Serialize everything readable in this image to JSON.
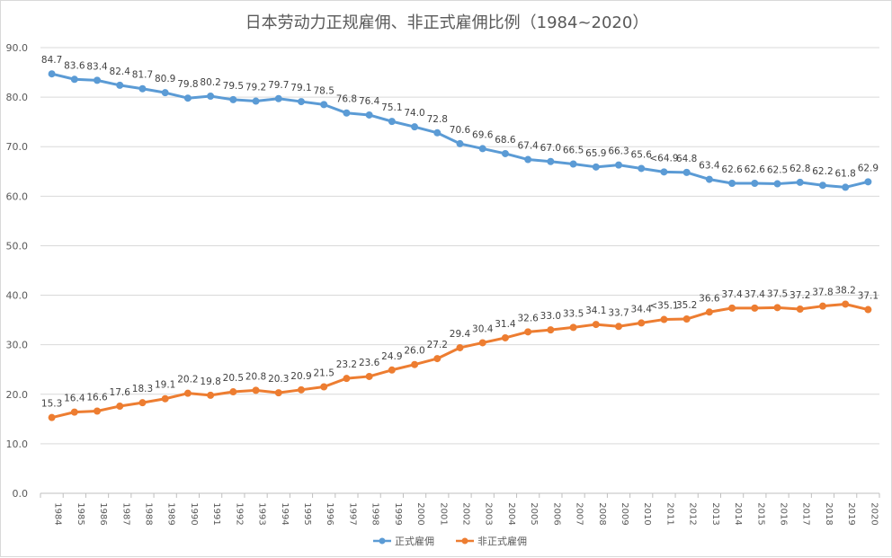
{
  "chart_data": {
    "type": "line",
    "title": "日本劳动力正规雇佣、非正式雇佣比例（1984~2020）",
    "xlabel": "",
    "ylabel": "",
    "ylim": [
      0,
      90
    ],
    "yticks": [
      "0.0",
      "10.0",
      "20.0",
      "30.0",
      "40.0",
      "50.0",
      "60.0",
      "70.0",
      "80.0",
      "90.0"
    ],
    "grid": true,
    "legend_position": "bottom",
    "x": [
      "1984",
      "1985",
      "1986",
      "1987",
      "1988",
      "1989",
      "1990",
      "1991",
      "1992",
      "1993",
      "1994",
      "1995",
      "1996",
      "1997",
      "1998",
      "1999",
      "2000",
      "2001",
      "2002",
      "2003",
      "2004",
      "2005",
      "2006",
      "2007",
      "2008",
      "2009",
      "2010",
      "2011",
      "2012",
      "2013",
      "2014",
      "2015",
      "2016",
      "2017",
      "2018",
      "2019",
      "2020"
    ],
    "series": [
      {
        "name": "正式雇佣",
        "color": "#5b9bd5",
        "values": [
          84.7,
          83.6,
          83.4,
          82.4,
          81.7,
          80.9,
          79.8,
          80.2,
          79.5,
          79.2,
          79.7,
          79.1,
          78.5,
          76.8,
          76.4,
          75.1,
          74.0,
          72.8,
          70.6,
          69.6,
          68.6,
          67.4,
          67.0,
          66.5,
          65.9,
          66.3,
          65.6,
          64.9,
          64.8,
          63.4,
          62.6,
          62.6,
          62.5,
          62.8,
          62.2,
          61.8,
          62.9
        ],
        "labels": [
          "84.7",
          "83.6",
          "83.4",
          "82.4",
          "81.7",
          "80.9",
          "79.8",
          "80.2",
          "79.5",
          "79.2",
          "79.7",
          "79.1",
          "78.5",
          "76.8",
          "76.4",
          "75.1",
          "74.0",
          "72.8",
          "70.6",
          "69.6",
          "68.6",
          "67.4",
          "67.0",
          "66.5",
          "65.9",
          "66.3",
          "65.6",
          "<64.9",
          "64.8",
          "63.4",
          "62.6",
          "62.6",
          "62.5",
          "62.8",
          "62.2",
          "61.8",
          "62.9"
        ]
      },
      {
        "name": "非正式雇佣",
        "color": "#ed7d31",
        "values": [
          15.3,
          16.4,
          16.6,
          17.6,
          18.3,
          19.1,
          20.2,
          19.8,
          20.5,
          20.8,
          20.3,
          20.9,
          21.5,
          23.2,
          23.6,
          24.9,
          26.0,
          27.2,
          29.4,
          30.4,
          31.4,
          32.6,
          33.0,
          33.5,
          34.1,
          33.7,
          34.4,
          35.1,
          35.2,
          36.6,
          37.4,
          37.4,
          37.5,
          37.2,
          37.8,
          38.2,
          37.1
        ],
        "labels": [
          "15.3",
          "16.4",
          "16.6",
          "17.6",
          "18.3",
          "19.1",
          "20.2",
          "19.8",
          "20.5",
          "20.8",
          "20.3",
          "20.9",
          "21.5",
          "23.2",
          "23.6",
          "24.9",
          "26.0",
          "27.2",
          "29.4",
          "30.4",
          "31.4",
          "32.6",
          "33.0",
          "33.5",
          "34.1",
          "33.7",
          "34.4",
          "<35.1",
          "35.2",
          "36.6",
          "37.4",
          "37.4",
          "37.5",
          "37.2",
          "37.8",
          "38.2",
          "37.1"
        ]
      }
    ]
  }
}
